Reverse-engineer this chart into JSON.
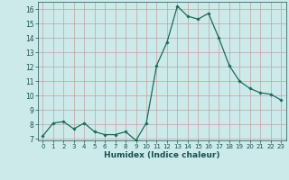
{
  "x": [
    0,
    1,
    2,
    3,
    4,
    5,
    6,
    7,
    8,
    9,
    10,
    11,
    12,
    13,
    14,
    15,
    16,
    17,
    18,
    19,
    20,
    21,
    22,
    23
  ],
  "y": [
    7.2,
    8.1,
    8.2,
    7.7,
    8.1,
    7.5,
    7.3,
    7.3,
    7.5,
    6.9,
    8.1,
    12.1,
    13.7,
    16.2,
    15.5,
    15.3,
    15.7,
    14.0,
    12.1,
    11.0,
    10.5,
    10.2,
    10.1,
    9.7
  ],
  "line_color": "#1a6b5a",
  "marker": "D",
  "marker_size": 1.8,
  "bg_color": "#cceaea",
  "grid_color": "#c4a0a0",
  "xlabel": "Humidex (Indice chaleur)",
  "xlabel_color": "#1a5050",
  "tick_color": "#1a5050",
  "ylim": [
    6.9,
    16.5
  ],
  "xlim": [
    -0.5,
    23.5
  ],
  "yticks": [
    7,
    8,
    9,
    10,
    11,
    12,
    13,
    14,
    15,
    16
  ],
  "xticks": [
    0,
    1,
    2,
    3,
    4,
    5,
    6,
    7,
    8,
    9,
    10,
    11,
    12,
    13,
    14,
    15,
    16,
    17,
    18,
    19,
    20,
    21,
    22,
    23
  ]
}
